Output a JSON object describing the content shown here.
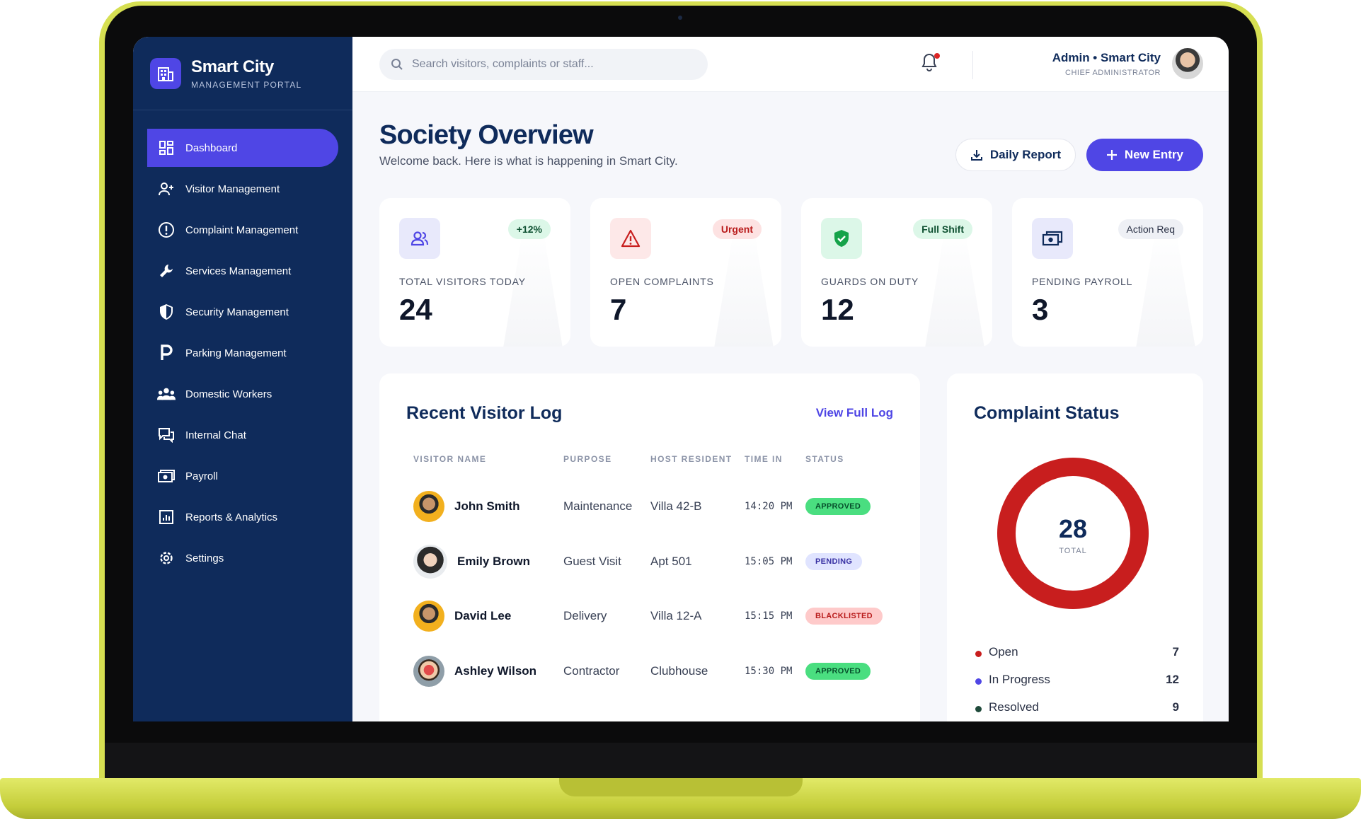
{
  "brand": {
    "title": "Smart City",
    "subtitle": "MANAGEMENT PORTAL"
  },
  "sidebar": {
    "items": [
      {
        "label": "Dashboard",
        "icon": "dashboard-icon",
        "active": true
      },
      {
        "label": "Visitor Management",
        "icon": "user-plus-icon"
      },
      {
        "label": "Complaint Management",
        "icon": "alert-circle-icon"
      },
      {
        "label": "Services Management",
        "icon": "wrench-icon"
      },
      {
        "label": "Security Management",
        "icon": "shield-icon"
      },
      {
        "label": "Parking Management",
        "icon": "parking-icon"
      },
      {
        "label": "Domestic Workers",
        "icon": "group-icon"
      },
      {
        "label": "Internal Chat",
        "icon": "chat-icon"
      },
      {
        "label": "Payroll",
        "icon": "payroll-icon"
      },
      {
        "label": "Reports & Analytics",
        "icon": "chart-icon"
      },
      {
        "label": "Settings",
        "icon": "gear-icon"
      }
    ]
  },
  "topbar": {
    "search_placeholder": "Search visitors, complaints or staff...",
    "user_name": "Admin • Smart City",
    "user_role": "CHIEF ADMINISTRATOR"
  },
  "header": {
    "title": "Society Overview",
    "subtitle": "Welcome back. Here is what is happening in Smart City.",
    "daily_report_label": "Daily Report",
    "new_entry_label": "New Entry"
  },
  "stats": [
    {
      "label": "TOTAL VISITORS TODAY",
      "value": "24",
      "badge": "+12%"
    },
    {
      "label": "OPEN COMPLAINTS",
      "value": "7",
      "badge": "Urgent"
    },
    {
      "label": "GUARDS ON DUTY",
      "value": "12",
      "badge": "Full Shift"
    },
    {
      "label": "PENDING PAYROLL",
      "value": "3",
      "badge": "Action Req"
    }
  ],
  "visitor_log": {
    "title": "Recent Visitor Log",
    "view_link": "View Full Log",
    "columns": [
      "VISITOR NAME",
      "PURPOSE",
      "HOST RESIDENT",
      "TIME IN",
      "STATUS"
    ],
    "rows": [
      {
        "name": "John Smith",
        "purpose": "Maintenance",
        "host": "Villa 42-B",
        "time": "14:20 PM",
        "status": "APPROVED"
      },
      {
        "name": "Emily Brown",
        "purpose": "Guest Visit",
        "host": "Apt 501",
        "time": "15:05 PM",
        "status": "PENDING"
      },
      {
        "name": "David Lee",
        "purpose": "Delivery",
        "host": "Villa 12-A",
        "time": "15:15 PM",
        "status": "BLACKLISTED"
      },
      {
        "name": "Ashley Wilson",
        "purpose": "Contractor",
        "host": "Clubhouse",
        "time": "15:30 PM",
        "status": "APPROVED"
      }
    ]
  },
  "complaint_status": {
    "title": "Complaint Status",
    "total": "28",
    "total_label": "TOTAL",
    "legend": [
      {
        "name": "Open",
        "value": "7",
        "color": "#c81e1e"
      },
      {
        "name": "In Progress",
        "value": "12",
        "color": "#4f46e5"
      },
      {
        "name": "Resolved",
        "value": "9",
        "color": "#1f4a3a"
      }
    ]
  },
  "colors": {
    "sidebar_bg": "#0f2b5b",
    "accent": "#4f46e5",
    "donut_ring": "#c81e1e"
  }
}
